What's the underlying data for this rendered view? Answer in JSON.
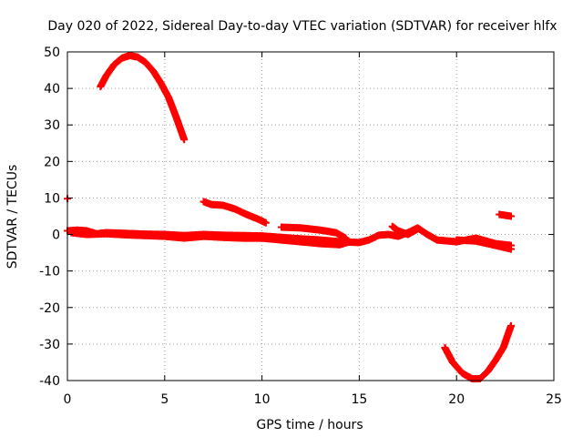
{
  "chart_data": {
    "type": "scatter",
    "title": "Day 020 of 2022, Sidereal Day-to-day VTEC variation (SDTVAR) for receiver hlfx",
    "xlabel": "GPS time / hours",
    "ylabel": "SDTVAR / TECUs",
    "xlim": [
      0,
      25
    ],
    "ylim": [
      -40,
      50
    ],
    "xticks": [
      0,
      5,
      10,
      15,
      20,
      25
    ],
    "yticks": [
      -40,
      -30,
      -20,
      -10,
      0,
      10,
      20,
      30,
      40,
      50
    ],
    "grid": true,
    "marker": "plus",
    "color": "#ff0000",
    "series": [
      {
        "name": "arc-1",
        "points": [
          [
            1.7,
            40.5
          ],
          [
            2.0,
            43.5
          ],
          [
            2.4,
            46.5
          ],
          [
            2.8,
            48.3
          ],
          [
            3.2,
            49.0
          ],
          [
            3.6,
            48.6
          ],
          [
            4.0,
            47.2
          ],
          [
            4.4,
            44.8
          ],
          [
            4.8,
            41.5
          ],
          [
            5.2,
            37.5
          ],
          [
            5.6,
            32.0
          ],
          [
            6.0,
            26.0
          ]
        ]
      },
      {
        "name": "arc-2",
        "points": [
          [
            7.0,
            9.0
          ],
          [
            7.4,
            8.2
          ],
          [
            8.0,
            8.0
          ],
          [
            8.6,
            7.0
          ],
          [
            9.2,
            5.5
          ],
          [
            9.8,
            4.2
          ],
          [
            10.2,
            3.2
          ]
        ]
      },
      {
        "name": "arc-3",
        "points": [
          [
            0.0,
            9.8
          ]
        ]
      },
      {
        "name": "arc-4",
        "points": [
          [
            0.0,
            1.0
          ],
          [
            0.5,
            1.2
          ],
          [
            1.0,
            1.0
          ],
          [
            1.5,
            0.2
          ],
          [
            2.0,
            0.5
          ],
          [
            3.0,
            0.3
          ],
          [
            4.0,
            0.1
          ],
          [
            5.0,
            0.0
          ],
          [
            6.0,
            -0.3
          ],
          [
            7.0,
            0.0
          ],
          [
            8.0,
            -0.2
          ],
          [
            9.0,
            -0.3
          ],
          [
            10.0,
            -0.4
          ],
          [
            11.0,
            -0.8
          ],
          [
            12.0,
            -1.2
          ],
          [
            13.0,
            -1.5
          ],
          [
            14.0,
            -2.0
          ],
          [
            15.0,
            -2.2
          ],
          [
            15.5,
            -1.5
          ],
          [
            16.0,
            -0.2
          ],
          [
            16.5,
            0.0
          ],
          [
            17.0,
            -0.5
          ],
          [
            17.5,
            0.5
          ],
          [
            18.0,
            1.8
          ],
          [
            18.5,
            0.0
          ],
          [
            19.0,
            -1.5
          ],
          [
            20.0,
            -2.0
          ],
          [
            21.0,
            -1.0
          ],
          [
            22.0,
            -2.5
          ],
          [
            22.8,
            -3.0
          ]
        ]
      },
      {
        "name": "arc-5",
        "points": [
          [
            0.2,
            0.5
          ],
          [
            1.0,
            0.0
          ],
          [
            2.0,
            0.2
          ],
          [
            3.0,
            -0.1
          ],
          [
            4.0,
            -0.3
          ],
          [
            5.0,
            -0.5
          ],
          [
            6.0,
            -1.0
          ],
          [
            7.0,
            -0.5
          ],
          [
            8.0,
            -0.8
          ],
          [
            9.0,
            -1.0
          ],
          [
            10.0,
            -1.0
          ],
          [
            11.0,
            -1.5
          ],
          [
            12.0,
            -2.0
          ],
          [
            13.0,
            -2.5
          ],
          [
            14.0,
            -2.8
          ],
          [
            14.5,
            -2.0
          ]
        ]
      },
      {
        "name": "arc-6",
        "points": [
          [
            11.0,
            2.0
          ],
          [
            12.0,
            1.8
          ],
          [
            13.0,
            1.2
          ],
          [
            13.8,
            0.5
          ],
          [
            14.3,
            -1.0
          ]
        ]
      },
      {
        "name": "arc-7",
        "points": [
          [
            16.7,
            2.2
          ],
          [
            17.0,
            1.0
          ],
          [
            17.5,
            0.0
          ],
          [
            18.0,
            1.5
          ]
        ]
      },
      {
        "name": "arc-8",
        "points": [
          [
            20.0,
            -1.5
          ],
          [
            21.0,
            -1.8
          ],
          [
            22.0,
            -3.0
          ],
          [
            22.8,
            -4.0
          ]
        ]
      },
      {
        "name": "arc-9",
        "points": [
          [
            22.2,
            5.5
          ],
          [
            22.8,
            5.0
          ]
        ]
      },
      {
        "name": "arc-10",
        "points": [
          [
            19.4,
            -31.0
          ],
          [
            19.8,
            -35.0
          ],
          [
            20.3,
            -38.0
          ],
          [
            20.8,
            -39.5
          ],
          [
            21.2,
            -39.5
          ],
          [
            21.6,
            -37.5
          ],
          [
            22.0,
            -34.5
          ],
          [
            22.4,
            -31.0
          ],
          [
            22.8,
            -25.0
          ]
        ]
      }
    ]
  }
}
